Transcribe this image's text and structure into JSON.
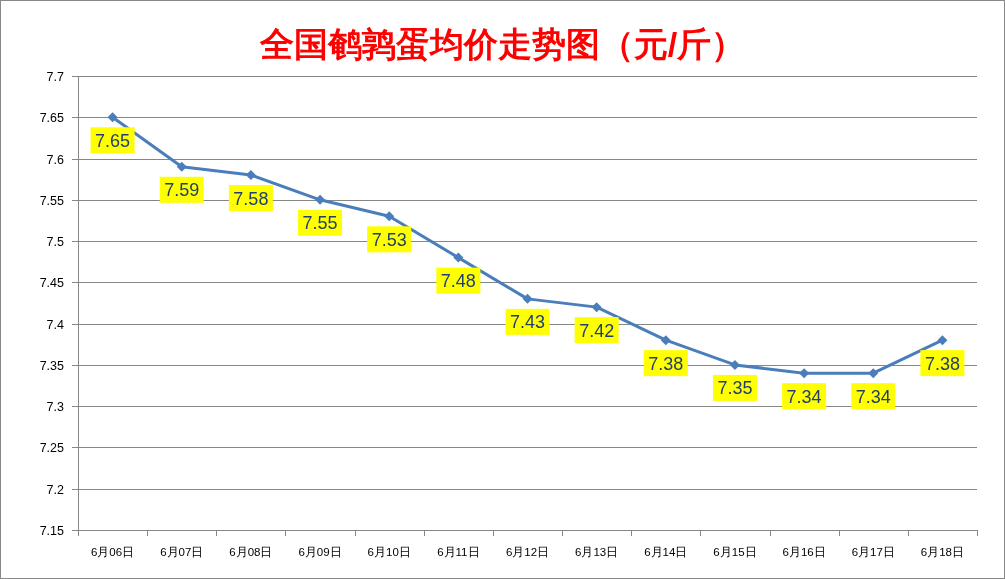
{
  "chart_data": {
    "type": "line",
    "title": "全国鹌鹑蛋均价走势图（元/斤）",
    "categories": [
      "6月06日",
      "6月07日",
      "6月08日",
      "6月09日",
      "6月10日",
      "6月11日",
      "6月12日",
      "6月13日",
      "6月14日",
      "6月15日",
      "6月16日",
      "6月17日",
      "6月18日"
    ],
    "series": [
      {
        "color": "#4a7ebb",
        "values": [
          7.65,
          7.59,
          7.58,
          7.55,
          7.53,
          7.48,
          7.43,
          7.42,
          7.38,
          7.35,
          7.34,
          7.34,
          7.38
        ]
      }
    ],
    "ylim": [
      7.15,
      7.7
    ],
    "yticks": [
      7.15,
      7.2,
      7.25,
      7.3,
      7.35,
      7.4,
      7.45,
      7.5,
      7.55,
      7.6,
      7.65,
      7.7
    ],
    "grid": "y",
    "marker": "diamond",
    "line_style": "solid",
    "data_labels": true
  }
}
